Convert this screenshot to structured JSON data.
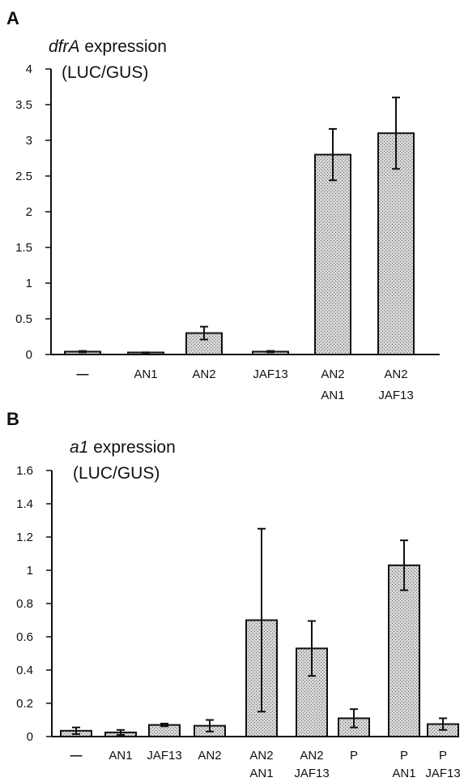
{
  "colors": {
    "bar_fill": "#c8c8c8",
    "ink": "#111111"
  },
  "chart_data": [
    {
      "panel": "A",
      "type": "bar",
      "title_italic": "dfrA",
      "title_rest": " expression",
      "title_line2": "(LUC/GUS)",
      "ylim": [
        0,
        4
      ],
      "yticks": [
        "0",
        "0.5",
        "1",
        "1.5",
        "2",
        "2.5",
        "3",
        "3.5",
        "4"
      ],
      "categories": [
        [
          "—"
        ],
        [
          "AN1"
        ],
        [
          "AN2"
        ],
        [
          "JAF13"
        ],
        [
          "AN2",
          "AN1"
        ],
        [
          "AN2",
          "JAF13"
        ]
      ],
      "values": [
        0.04,
        0.02,
        0.3,
        0.04,
        2.8,
        3.1
      ],
      "errors": [
        0.01,
        0.01,
        0.09,
        0.01,
        0.36,
        0.5
      ],
      "grid": false
    },
    {
      "panel": "B",
      "type": "bar",
      "title_italic": "a1",
      "title_rest": " expression",
      "title_line2": "(LUC/GUS)",
      "ylim": [
        0,
        1.6
      ],
      "yticks": [
        "0",
        "0.2",
        "0.4",
        "0.6",
        "0.8",
        "1",
        "1.2",
        "1.4",
        "1.6"
      ],
      "categories": [
        [
          "—"
        ],
        [
          "AN1"
        ],
        [
          "JAF13"
        ],
        [
          "AN2"
        ],
        [
          "AN2",
          "AN1"
        ],
        [
          "AN2",
          "JAF13"
        ],
        [
          "P"
        ],
        [
          "P",
          "AN1"
        ],
        [
          "P",
          "JAF13"
        ]
      ],
      "values": [
        0.035,
        0.025,
        0.07,
        0.065,
        0.7,
        0.53,
        0.11,
        1.03,
        0.075
      ],
      "errors": [
        0.02,
        0.015,
        0.008,
        0.035,
        0.55,
        0.165,
        0.055,
        0.15,
        0.035
      ],
      "grid": false
    }
  ]
}
